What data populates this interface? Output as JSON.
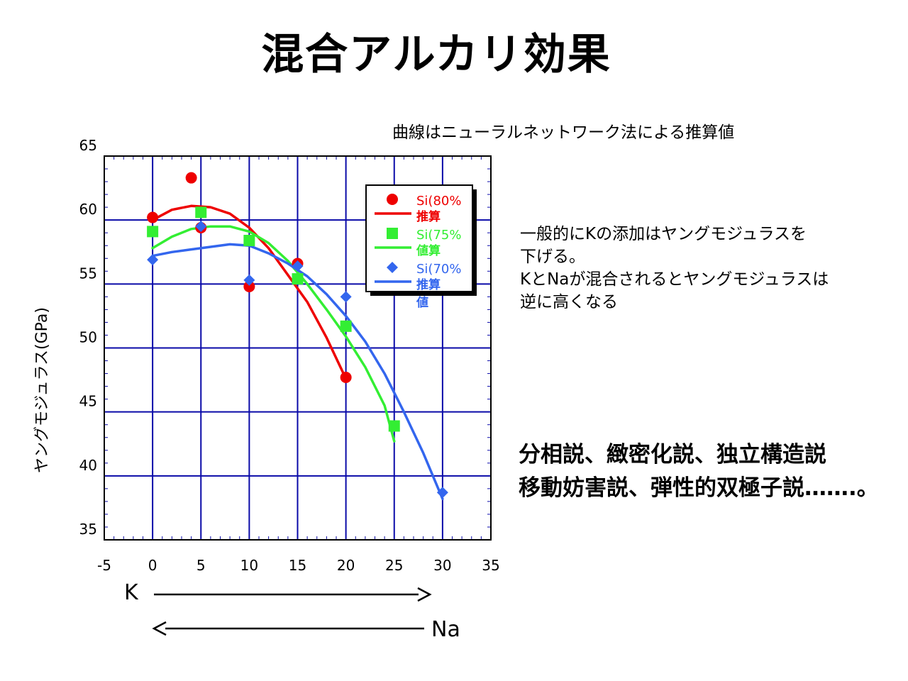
{
  "title": "混合アルカリ効果",
  "note": "曲線はニューラルネットワーク法による推算値",
  "observation": [
    "一般的にKの添加はヤングモジュラスを",
    "下げる。",
    "KとNaが混合されるとヤングモジュラスは",
    "逆に高くなる"
  ],
  "theories": [
    "分相説、緻密化説、独立構造説",
    "移動妨害説、弾性的双極子説…….。"
  ],
  "direction_labels": {
    "k": "K",
    "na": "Na"
  },
  "colors": {
    "grid": "#0a0aa8",
    "axis": "#000000",
    "legend_shadow": "#000000"
  },
  "chart_data": {
    "type": "scatter",
    "ylabel": "ヤングモジュラス(GPa)",
    "xlabel": "",
    "xlim": [
      -5,
      35
    ],
    "ylim": [
      35,
      65
    ],
    "xticks": [
      "-5",
      "0",
      "5",
      "10",
      "15",
      "20",
      "25",
      "30",
      "35"
    ],
    "yticks": [
      "35",
      "40",
      "45",
      "50",
      "55",
      "60",
      "65"
    ],
    "grid": true,
    "legend_position": "top-right",
    "series": [
      {
        "name": "Si(80%",
        "curve_label": "推算",
        "marker": "circle",
        "color": "#ee0000",
        "points": [
          [
            0,
            60.2
          ],
          [
            4,
            63.3
          ],
          [
            5,
            59.4
          ],
          [
            10,
            54.8
          ],
          [
            15,
            56.6
          ],
          [
            20,
            47.7
          ]
        ],
        "curve": [
          [
            0,
            60.0
          ],
          [
            2,
            60.8
          ],
          [
            4,
            61.1
          ],
          [
            6,
            61.0
          ],
          [
            8,
            60.5
          ],
          [
            10,
            59.4
          ],
          [
            12,
            57.8
          ],
          [
            14,
            55.7
          ],
          [
            16,
            53.6
          ],
          [
            18,
            50.8
          ],
          [
            20,
            47.6
          ]
        ]
      },
      {
        "name": "Si(75%",
        "curve_label": "値算",
        "marker": "square",
        "color": "#33ee33",
        "points": [
          [
            0,
            59.1
          ],
          [
            5,
            60.6
          ],
          [
            10,
            58.4
          ],
          [
            15,
            55.4
          ],
          [
            20,
            51.7
          ],
          [
            25,
            43.9
          ]
        ],
        "curve": [
          [
            0,
            57.8
          ],
          [
            2,
            58.7
          ],
          [
            4,
            59.3
          ],
          [
            6,
            59.5
          ],
          [
            8,
            59.5
          ],
          [
            10,
            59.1
          ],
          [
            12,
            58.2
          ],
          [
            14,
            56.8
          ],
          [
            16,
            55.0
          ],
          [
            18,
            53.0
          ],
          [
            20,
            50.9
          ],
          [
            22,
            48.5
          ],
          [
            24,
            45.5
          ],
          [
            25,
            42.7
          ]
        ]
      },
      {
        "name": "Si(70%",
        "curve_label": "推算",
        "curve_label_2": "値",
        "marker": "diamond",
        "color": "#3366ee",
        "points": [
          [
            0,
            56.9
          ],
          [
            5,
            59.5
          ],
          [
            10,
            55.3
          ],
          [
            15,
            56.4
          ],
          [
            20,
            54.0
          ],
          [
            30,
            38.7
          ]
        ],
        "curve": [
          [
            0,
            57.2
          ],
          [
            2,
            57.5
          ],
          [
            4,
            57.7
          ],
          [
            6,
            57.9
          ],
          [
            8,
            58.1
          ],
          [
            10,
            58.0
          ],
          [
            12,
            57.4
          ],
          [
            14,
            56.6
          ],
          [
            16,
            55.6
          ],
          [
            18,
            54.2
          ],
          [
            20,
            52.5
          ],
          [
            22,
            50.5
          ],
          [
            24,
            48.0
          ],
          [
            26,
            45.0
          ],
          [
            28,
            41.8
          ],
          [
            30,
            38.2
          ]
        ]
      }
    ]
  }
}
